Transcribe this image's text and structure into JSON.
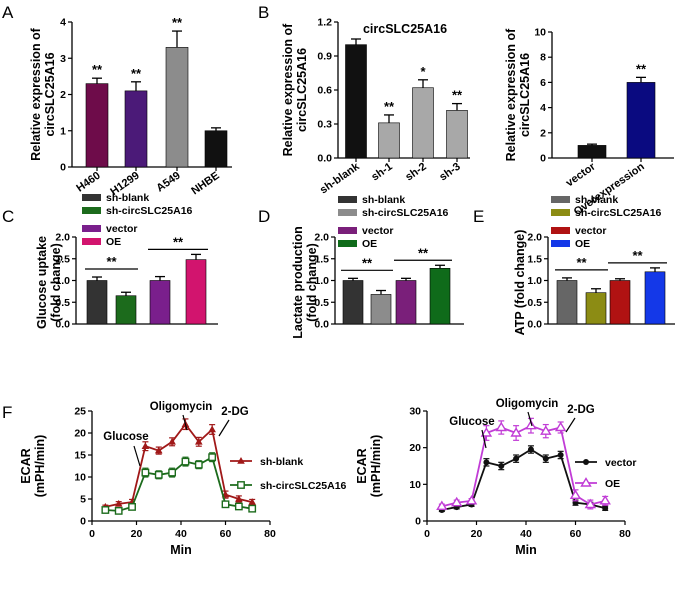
{
  "panels": {
    "A": "A",
    "B": "B",
    "C": "C",
    "D": "D",
    "E": "E",
    "F": "F"
  },
  "chart_data": [
    {
      "id": "A",
      "type": "bar",
      "ylabel": "Relative expression of circSLC25A16",
      "ylim": [
        0,
        4
      ],
      "yticks": [
        "0",
        "1",
        "2",
        "3",
        "4"
      ],
      "categories": [
        "H460",
        "H1299",
        "A549",
        "NHBE"
      ],
      "values": [
        2.3,
        2.1,
        3.3,
        1.0
      ],
      "errors": [
        0.15,
        0.25,
        0.45,
        0.08
      ],
      "colors": [
        "#6e0c4a",
        "#4b1a78",
        "#8c8c8c",
        "#111111"
      ],
      "significance": [
        "**",
        "**",
        "**",
        ""
      ]
    },
    {
      "id": "B1",
      "type": "bar",
      "title": "circSLC25A16",
      "ylabel": "Relative expression of circSLC25A16",
      "ylim": [
        0,
        1.2
      ],
      "yticks": [
        "0.0",
        "0.3",
        "0.6",
        "0.9",
        "1.2"
      ],
      "categories": [
        "sh-blank",
        "sh-1",
        "sh-2",
        "sh-3"
      ],
      "values": [
        1.0,
        0.31,
        0.62,
        0.42
      ],
      "errors": [
        0.05,
        0.07,
        0.07,
        0.06
      ],
      "colors": [
        "#111111",
        "#a8a8a8",
        "#a8a8a8",
        "#a8a8a8"
      ],
      "significance": [
        "",
        "**",
        "*",
        "**"
      ]
    },
    {
      "id": "B2",
      "type": "bar",
      "ylabel": "Relative expression of circSLC25A16",
      "ylim": [
        0,
        10
      ],
      "yticks": [
        "0",
        "2",
        "4",
        "6",
        "8",
        "10"
      ],
      "categories": [
        "vector",
        "Overexpression"
      ],
      "values": [
        1.0,
        6.0
      ],
      "errors": [
        0.1,
        0.4
      ],
      "colors": [
        "#111111",
        "#0a0a80"
      ],
      "significance": [
        "",
        "**"
      ]
    },
    {
      "id": "C",
      "type": "bar",
      "ylabel": "Glucose uptake (fold change)",
      "ylim": [
        0,
        2.0
      ],
      "yticks": [
        "0.0",
        "0.5",
        "1.0",
        "1.5",
        "2.0"
      ],
      "legend": [
        "sh-blank",
        "sh-circSLC25A16",
        "vector",
        "OE"
      ],
      "values": [
        1.0,
        0.65,
        1.0,
        1.48
      ],
      "errors": [
        0.08,
        0.08,
        0.09,
        0.12
      ],
      "colors": [
        "#333333",
        "#1c6b1c",
        "#7a1f8c",
        "#d2146e"
      ],
      "significance": [
        "**",
        "**"
      ]
    },
    {
      "id": "D",
      "type": "bar",
      "ylabel": "Lactate production (fold change)",
      "ylim": [
        0,
        2.0
      ],
      "yticks": [
        "0.0",
        "0.5",
        "1.0",
        "1.5",
        "2.0"
      ],
      "legend": [
        "sh-blank",
        "sh-circSLC25A16",
        "vector",
        "OE"
      ],
      "values": [
        1.0,
        0.68,
        1.0,
        1.28
      ],
      "errors": [
        0.05,
        0.09,
        0.05,
        0.07
      ],
      "colors": [
        "#333333",
        "#8c8c8c",
        "#7a1f7a",
        "#0f6b1a"
      ],
      "significance": [
        "**",
        "**"
      ]
    },
    {
      "id": "E",
      "type": "bar",
      "ylabel": "ATP (fold change)",
      "ylim": [
        0,
        2.0
      ],
      "yticks": [
        "0.0",
        "0.5",
        "1.0",
        "1.5",
        "2.0"
      ],
      "legend": [
        "sh-blank",
        "sh-circSLC25A16",
        "vector",
        "OE"
      ],
      "values": [
        1.0,
        0.72,
        1.0,
        1.2
      ],
      "errors": [
        0.06,
        0.09,
        0.04,
        0.09
      ],
      "colors": [
        "#666666",
        "#8c8c14",
        "#b01212",
        "#1438e8"
      ],
      "significance": [
        "**",
        "**"
      ]
    },
    {
      "id": "F1",
      "type": "line",
      "xlabel": "Min",
      "ylabel": "ECAR (mPH/min)",
      "xlim": [
        0,
        80
      ],
      "ylim": [
        0,
        25
      ],
      "xticks": [
        "0",
        "20",
        "40",
        "60",
        "80"
      ],
      "yticks": [
        "0",
        "5",
        "10",
        "15",
        "20",
        "25"
      ],
      "x": [
        6,
        12,
        18,
        24,
        30,
        36,
        42,
        48,
        54,
        60,
        66,
        72
      ],
      "series": [
        {
          "name": "sh-blank",
          "color": "#a01818",
          "marker": "triangle",
          "values": [
            3.2,
            3.9,
            4.3,
            17,
            16,
            18,
            22,
            18,
            20.8,
            6,
            5,
            4.3
          ],
          "errors": [
            0.4,
            0.5,
            0.6,
            1.0,
            0.8,
            0.9,
            1.2,
            1.0,
            1.1,
            0.8,
            0.7,
            0.6
          ]
        },
        {
          "name": "sh-circSLC25A16",
          "color": "#1c6b1c",
          "marker": "square",
          "values": [
            2.5,
            2.3,
            3.2,
            11,
            10.5,
            11,
            13.5,
            12.8,
            14.5,
            3.8,
            3.3,
            2.8
          ],
          "errors": [
            0.4,
            0.4,
            0.5,
            1.0,
            0.9,
            1.0,
            1.0,
            0.9,
            1.0,
            0.6,
            0.5,
            0.5
          ]
        }
      ],
      "annotations": [
        "Glucose",
        "Oligomycin",
        "2-DG"
      ]
    },
    {
      "id": "F2",
      "type": "line",
      "xlabel": "Min",
      "ylabel": "ECAR (mPH/min)",
      "xlim": [
        0,
        80
      ],
      "ylim": [
        0,
        30
      ],
      "xticks": [
        "0",
        "20",
        "40",
        "60",
        "80"
      ],
      "yticks": [
        "0",
        "10",
        "20",
        "30"
      ],
      "x": [
        6,
        12,
        18,
        24,
        30,
        36,
        42,
        48,
        54,
        60,
        66,
        72
      ],
      "series": [
        {
          "name": "vector",
          "color": "#111111",
          "marker": "circle",
          "values": [
            3,
            3.8,
            4.5,
            16,
            15,
            17,
            19.5,
            17,
            18,
            5,
            4.5,
            3.5
          ],
          "errors": [
            0.4,
            0.5,
            0.5,
            1.0,
            1.0,
            1.0,
            1.0,
            1.0,
            1.0,
            0.7,
            0.6,
            0.6
          ]
        },
        {
          "name": "OE",
          "color": "#c13cd6",
          "marker": "triangle-open",
          "values": [
            4,
            5,
            5.5,
            24,
            25.5,
            24,
            26,
            24.5,
            25.5,
            7,
            4.5,
            5.5
          ],
          "errors": [
            0.6,
            0.7,
            0.6,
            2.0,
            1.8,
            2.0,
            2.0,
            1.8,
            1.5,
            1.5,
            1.2,
            1.2
          ]
        }
      ],
      "annotations": [
        "Glucose",
        "Oligomycin",
        "2-DG"
      ]
    }
  ]
}
